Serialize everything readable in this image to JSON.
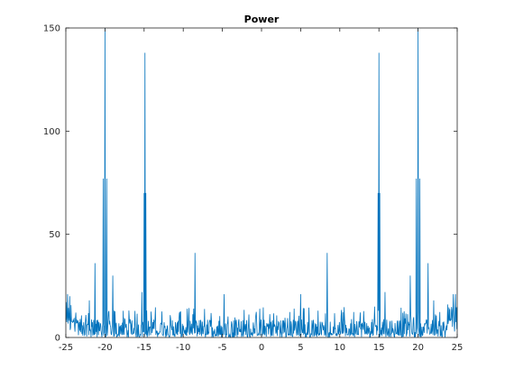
{
  "chart_data": {
    "type": "line",
    "title": "Power",
    "xlabel": "",
    "ylabel": "",
    "xlim": [
      -25,
      25
    ],
    "ylim": [
      0,
      150
    ],
    "xticks": [
      -25,
      -20,
      -15,
      -10,
      -5,
      0,
      5,
      10,
      15,
      20,
      25
    ],
    "xtick_labels": [
      "-25",
      "-20",
      "-15",
      "-10",
      "-5",
      "0",
      "5",
      "10",
      "15",
      "20",
      "25"
    ],
    "yticks": [
      0,
      50,
      100,
      150
    ],
    "ytick_labels": [
      "0",
      "50",
      "100",
      "150"
    ],
    "grid": false,
    "legend": "none",
    "series": [
      {
        "color": "#0072bd",
        "baseline": "noise floor ~0-15, dense",
        "peaks": [
          {
            "x": -24.8,
            "y": 21
          },
          {
            "x": -24.5,
            "y": 20
          },
          {
            "x": -22.0,
            "y": 18
          },
          {
            "x": -21.3,
            "y": 36
          },
          {
            "x": -20.2,
            "y": 77
          },
          {
            "x": -20.0,
            "y": 150
          },
          {
            "x": -19.8,
            "y": 77
          },
          {
            "x": -19.0,
            "y": 30
          },
          {
            "x": -15.3,
            "y": 22
          },
          {
            "x": -15.0,
            "y": 70
          },
          {
            "x": -14.9,
            "y": 138
          },
          {
            "x": -14.8,
            "y": 70
          },
          {
            "x": -8.5,
            "y": 41
          },
          {
            "x": -4.8,
            "y": 21
          },
          {
            "x": 5.0,
            "y": 21
          },
          {
            "x": 8.4,
            "y": 41
          },
          {
            "x": 14.9,
            "y": 70
          },
          {
            "x": 15.0,
            "y": 138
          },
          {
            "x": 15.1,
            "y": 70
          },
          {
            "x": 15.8,
            "y": 22
          },
          {
            "x": 19.0,
            "y": 30
          },
          {
            "x": 19.8,
            "y": 77
          },
          {
            "x": 20.0,
            "y": 150
          },
          {
            "x": 20.2,
            "y": 77
          },
          {
            "x": 21.3,
            "y": 36
          },
          {
            "x": 22.0,
            "y": 18
          },
          {
            "x": 24.5,
            "y": 21
          },
          {
            "x": 24.8,
            "y": 21
          }
        ]
      }
    ]
  }
}
